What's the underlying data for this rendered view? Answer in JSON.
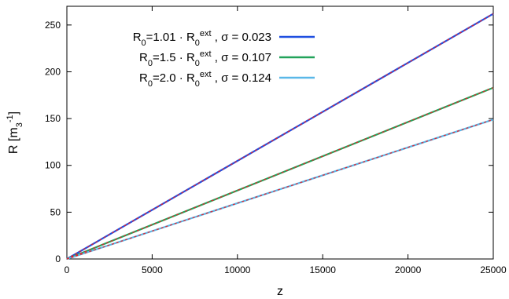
{
  "chart_data": {
    "type": "line",
    "xlabel": "z",
    "ylabel": {
      "main": "R [m",
      "sub": "3",
      "sup": "-1",
      "close": "]"
    },
    "xlim": [
      0,
      25000
    ],
    "ylim": [
      0,
      270
    ],
    "xticks": [
      0,
      5000,
      10000,
      15000,
      20000,
      25000
    ],
    "yticks": [
      0,
      50,
      100,
      150,
      200,
      250
    ],
    "grid": false,
    "legend_position": "top-left",
    "fit_line_color": "#e8202a",
    "series": [
      {
        "name": {
          "r": "R",
          "sub0": "0",
          "factor": "=1.01 · R",
          "sub1": "0",
          "sup": "ext",
          "sigma": " , σ = 0.023"
        },
        "color": "#1f4fe0",
        "x": [
          0,
          25000
        ],
        "y": [
          0,
          262
        ],
        "fit_y": [
          0,
          262
        ]
      },
      {
        "name": {
          "r": "R",
          "sub0": "0",
          "factor": "=1.5 · R",
          "sub1": "0",
          "sup": "ext",
          "sigma": " , σ = 0.107"
        },
        "color": "#22a35a",
        "x": [
          0,
          25000
        ],
        "y": [
          0,
          183
        ],
        "fit_y": [
          0,
          183
        ]
      },
      {
        "name": {
          "r": "R",
          "sub0": "0",
          "factor": "=2.0 · R",
          "sub1": "0",
          "sup": "ext",
          "sigma": " , σ = 0.124"
        },
        "color": "#5ab8e8",
        "x": [
          0,
          25000
        ],
        "y": [
          0,
          149
        ],
        "fit_y": [
          0,
          149
        ]
      }
    ]
  }
}
